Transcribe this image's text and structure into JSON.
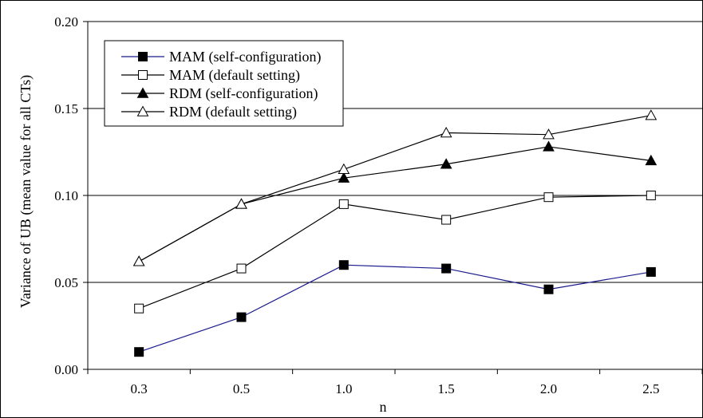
{
  "chart_data": {
    "type": "line",
    "title": "",
    "xlabel": "n",
    "ylabel": "Variance of UB (mean value for all CTs)",
    "categories": [
      "0.3",
      "0.5",
      "1.0",
      "1.5",
      "2.0",
      "2.5"
    ],
    "ylim": [
      0,
      0.2
    ],
    "yticks": [
      "0.00",
      "0.05",
      "0.10",
      "0.15",
      "0.20"
    ],
    "grid": "horizontal",
    "legend_position": "top-left",
    "series": [
      {
        "name": "MAM (self-configuration)",
        "marker": "filled-square",
        "line_color": "#1a1a8c",
        "values": [
          0.01,
          0.03,
          0.06,
          0.058,
          0.046,
          0.056
        ]
      },
      {
        "name": "MAM (default setting)",
        "marker": "open-square",
        "line_color": "#000000",
        "values": [
          0.035,
          0.058,
          0.095,
          0.086,
          0.099,
          0.1
        ]
      },
      {
        "name": "RDM (self-configuration)",
        "marker": "filled-triangle",
        "line_color": "#000000",
        "values": [
          0.062,
          0.095,
          0.11,
          0.118,
          0.128,
          0.12
        ]
      },
      {
        "name": "RDM (default setting)",
        "marker": "open-triangle",
        "line_color": "#000000",
        "values": [
          0.062,
          0.095,
          0.115,
          0.136,
          0.135,
          0.146
        ]
      }
    ]
  }
}
